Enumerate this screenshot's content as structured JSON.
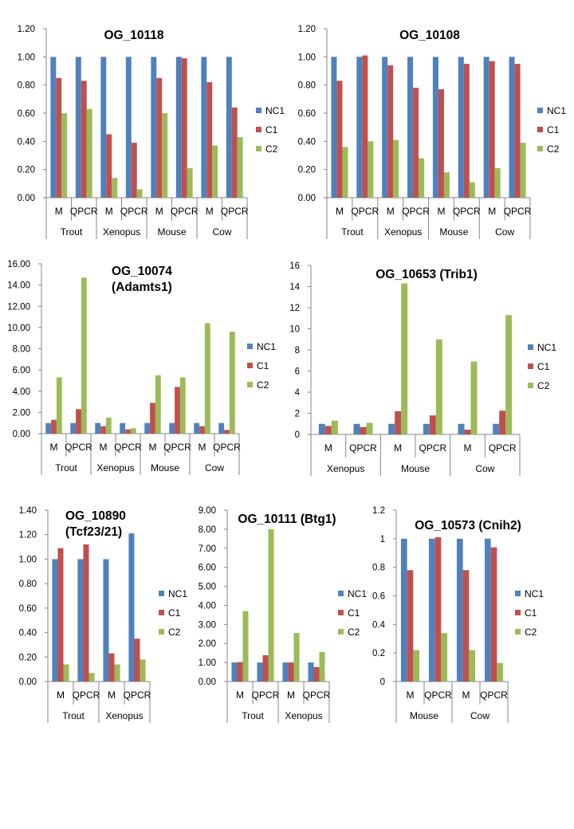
{
  "colors": {
    "NC1": "#4f81bd",
    "C1": "#c0504d",
    "C2": "#9bbb59",
    "axis": "#868686"
  },
  "chart_data": [
    {
      "type": "bar",
      "title": [
        "OG_10118"
      ],
      "groups": [
        "Trout",
        "Xenopus",
        "Mouse",
        "Cow"
      ],
      "categories": [
        "M",
        "QPCR",
        "M",
        "QPCR",
        "M",
        "QPCR",
        "M",
        "QPCR"
      ],
      "series": [
        {
          "name": "NC1",
          "values": [
            1.0,
            1.0,
            1.0,
            1.0,
            1.0,
            1.0,
            1.0,
            1.0
          ]
        },
        {
          "name": "C1",
          "values": [
            0.85,
            0.83,
            0.45,
            0.39,
            0.85,
            0.99,
            0.82,
            0.64
          ]
        },
        {
          "name": "C2",
          "values": [
            0.6,
            0.63,
            0.14,
            0.06,
            0.6,
            0.21,
            0.37,
            0.43
          ]
        }
      ],
      "yticks": [
        "0.00",
        "0.20",
        "0.40",
        "0.60",
        "0.80",
        "1.00",
        "1.20"
      ],
      "ylim": [
        0,
        1.2
      ]
    },
    {
      "type": "bar",
      "title": [
        "OG_10108"
      ],
      "groups": [
        "Trout",
        "Xenopus",
        "Mouse",
        "Cow"
      ],
      "categories": [
        "M",
        "QPCR",
        "M",
        "QPCR",
        "M",
        "QPCR",
        "M",
        "QPCR"
      ],
      "series": [
        {
          "name": "NC1",
          "values": [
            1.0,
            1.0,
            1.0,
            1.0,
            1.0,
            1.0,
            1.0,
            1.0
          ]
        },
        {
          "name": "C1",
          "values": [
            0.83,
            1.01,
            0.94,
            0.78,
            0.77,
            0.95,
            0.97,
            0.95
          ]
        },
        {
          "name": "C2",
          "values": [
            0.36,
            0.4,
            0.41,
            0.28,
            0.18,
            0.11,
            0.21,
            0.39
          ]
        }
      ],
      "yticks": [
        "0.00",
        "0.20",
        "0.40",
        "0.60",
        "0.80",
        "1.00",
        "1.20"
      ],
      "ylim": [
        0,
        1.2
      ]
    },
    {
      "type": "bar",
      "title": [
        "OG_10074",
        "(Adamts1)"
      ],
      "groups": [
        "Trout",
        "Xenopus",
        "Mouse",
        "Cow"
      ],
      "categories": [
        "M",
        "QPCR",
        "M",
        "QPCR",
        "M",
        "QPCR",
        "M",
        "QPCR"
      ],
      "series": [
        {
          "name": "NC1",
          "values": [
            1.0,
            1.0,
            1.0,
            1.0,
            1.0,
            1.0,
            1.0,
            1.0
          ]
        },
        {
          "name": "C1",
          "values": [
            1.3,
            2.3,
            0.7,
            0.4,
            2.9,
            4.4,
            0.7,
            0.35
          ]
        },
        {
          "name": "C2",
          "values": [
            5.3,
            14.7,
            1.5,
            0.5,
            5.5,
            5.3,
            10.4,
            9.6
          ]
        }
      ],
      "yticks": [
        "0.00",
        "2.00",
        "4.00",
        "6.00",
        "8.00",
        "10.00",
        "12.00",
        "14.00",
        "16.00"
      ],
      "ylim": [
        0,
        16
      ]
    },
    {
      "type": "bar",
      "title": [
        "OG_10653 (Trib1)"
      ],
      "groups": [
        "Xenopus",
        "Mouse",
        "Cow"
      ],
      "categories": [
        "M",
        "QPCR",
        "M",
        "QPCR",
        "M",
        "QPCR"
      ],
      "series": [
        {
          "name": "NC1",
          "values": [
            1.0,
            1.0,
            1.0,
            1.0,
            1.0,
            1.0
          ]
        },
        {
          "name": "C1",
          "values": [
            0.8,
            0.7,
            2.2,
            1.8,
            0.45,
            2.25
          ]
        },
        {
          "name": "C2",
          "values": [
            1.3,
            1.1,
            14.3,
            9.0,
            6.9,
            11.3
          ]
        }
      ],
      "yticks": [
        "0",
        "2",
        "4",
        "6",
        "8",
        "10",
        "12",
        "14",
        "16"
      ],
      "ylim": [
        0,
        16
      ]
    },
    {
      "type": "bar",
      "title": [
        "OG_10890",
        "(Tcf23/21)"
      ],
      "groups": [
        "Trout",
        "Xenopus"
      ],
      "categories": [
        "M",
        "QPCR",
        "M",
        "QPCR"
      ],
      "series": [
        {
          "name": "NC1",
          "values": [
            1.0,
            1.0,
            1.0,
            1.21
          ]
        },
        {
          "name": "C1",
          "values": [
            1.09,
            1.12,
            0.23,
            0.35
          ]
        },
        {
          "name": "C2",
          "values": [
            0.14,
            0.07,
            0.14,
            0.18
          ]
        }
      ],
      "yticks": [
        "0.00",
        "0.20",
        "0.40",
        "0.60",
        "0.80",
        "1.00",
        "1.20",
        "1.40"
      ],
      "ylim": [
        0,
        1.4
      ]
    },
    {
      "type": "bar",
      "title": [
        "OG_10111 (Btg1)"
      ],
      "groups": [
        "Trout",
        "Xenopus"
      ],
      "categories": [
        "M",
        "QPCR",
        "M",
        "QPCR"
      ],
      "series": [
        {
          "name": "NC1",
          "values": [
            1.0,
            1.0,
            1.0,
            1.0
          ]
        },
        {
          "name": "C1",
          "values": [
            1.02,
            1.38,
            1.0,
            0.76
          ]
        },
        {
          "name": "C2",
          "values": [
            3.7,
            8.0,
            2.55,
            1.55
          ]
        }
      ],
      "yticks": [
        "0.00",
        "1.00",
        "2.00",
        "3.00",
        "4.00",
        "5.00",
        "6.00",
        "7.00",
        "8.00",
        "9.00"
      ],
      "ylim": [
        0,
        9
      ]
    },
    {
      "type": "bar",
      "title": [
        "OG_10573 (Cnih2)"
      ],
      "groups": [
        "Mouse",
        "Cow"
      ],
      "categories": [
        "M",
        "QPCR",
        "M",
        "QPCR"
      ],
      "series": [
        {
          "name": "NC1",
          "values": [
            1.0,
            1.0,
            1.0,
            1.0
          ]
        },
        {
          "name": "C1",
          "values": [
            0.78,
            1.01,
            0.78,
            0.94
          ]
        },
        {
          "name": "C2",
          "values": [
            0.22,
            0.34,
            0.22,
            0.13
          ]
        }
      ],
      "yticks": [
        "0",
        "0.2",
        "0.4",
        "0.6",
        "0.8",
        "1",
        "1.2"
      ],
      "ylim": [
        0,
        1.2
      ]
    }
  ]
}
